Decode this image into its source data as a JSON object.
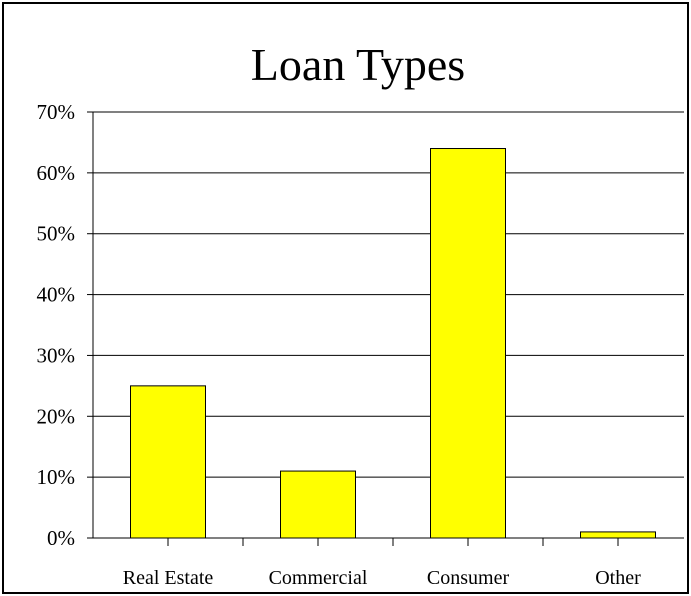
{
  "chart_data": {
    "type": "bar",
    "title": "Loan Types",
    "xlabel": "",
    "ylabel": "",
    "categories": [
      "Real Estate",
      "Commercial",
      "Consumer",
      "Other"
    ],
    "values": [
      25,
      11,
      64,
      1
    ],
    "ylim": [
      0,
      70
    ],
    "yticks": [
      "0%",
      "10%",
      "20%",
      "30%",
      "40%",
      "50%",
      "60%",
      "70%"
    ],
    "grid": true,
    "legend": "none",
    "bar_color": "#ffff00",
    "bar_edge_color": "#000000"
  }
}
